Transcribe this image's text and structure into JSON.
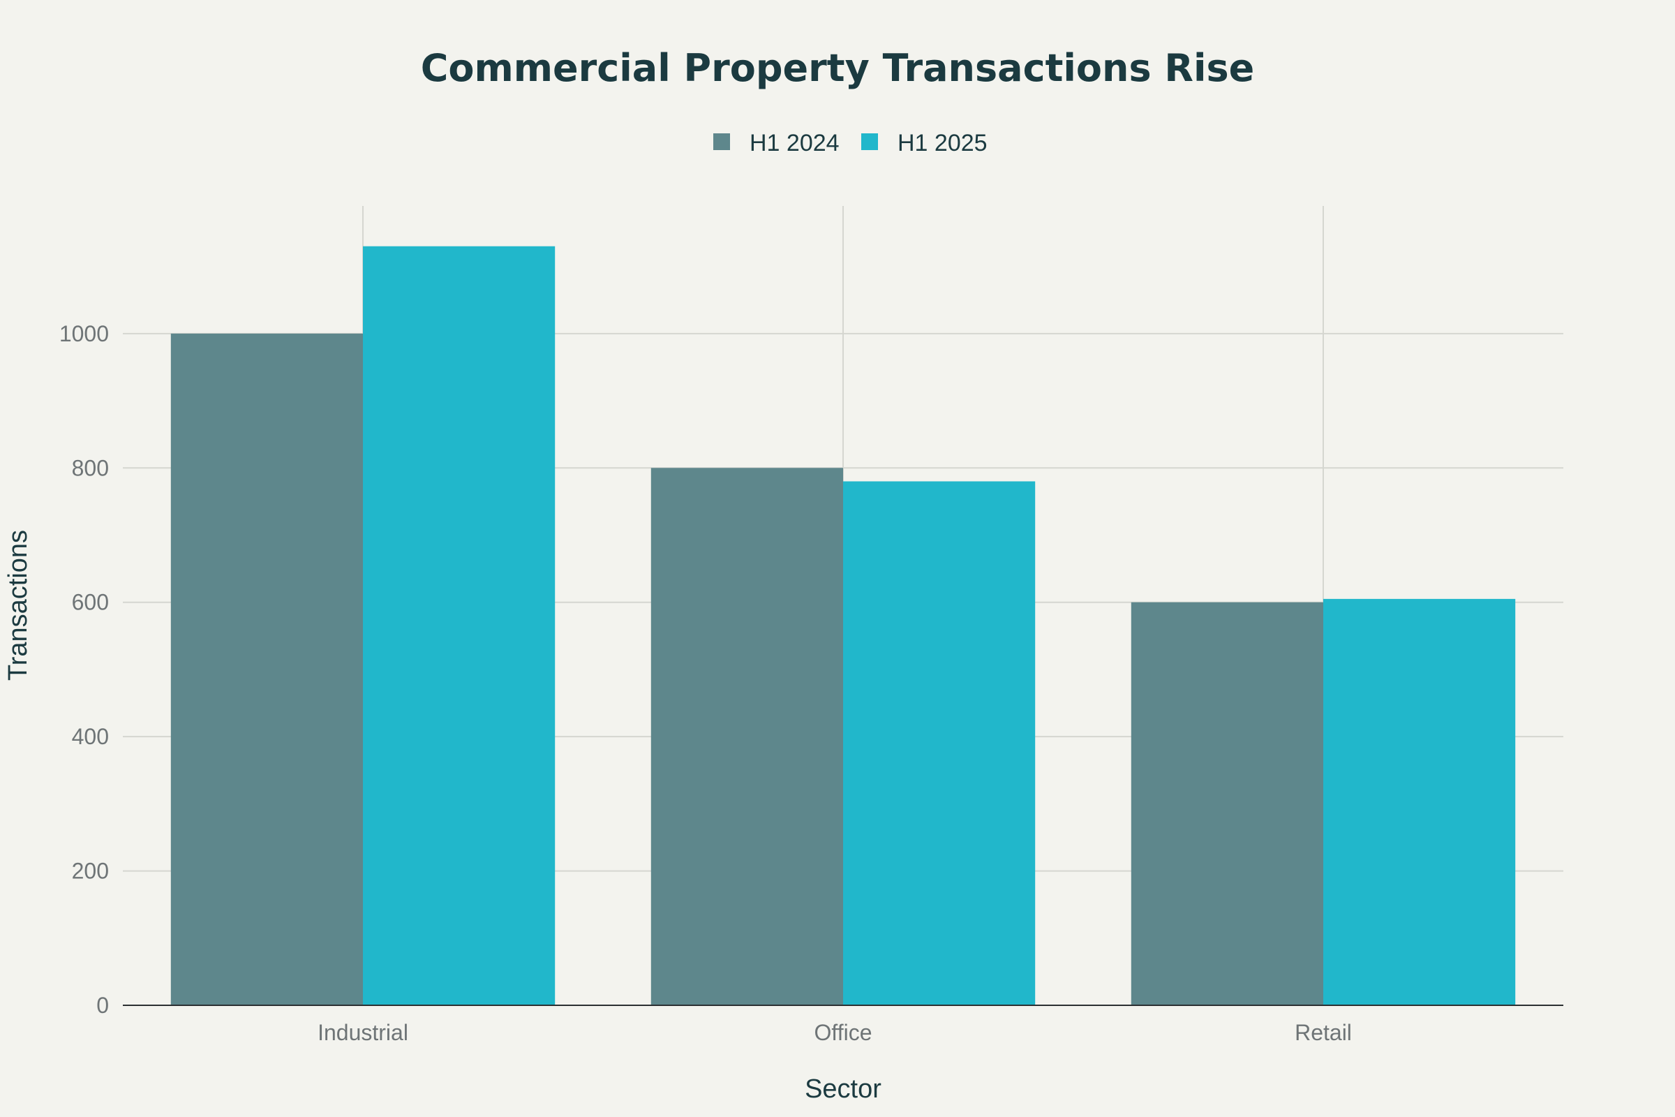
{
  "chart_data": {
    "type": "bar",
    "title": "Commercial Property Transactions Rise",
    "xlabel": "Sector",
    "ylabel": "Transactions",
    "categories": [
      "Industrial",
      "Office",
      "Retail"
    ],
    "series": [
      {
        "name": "H1 2024",
        "color": "#5e878c",
        "values": [
          1000,
          800,
          600
        ]
      },
      {
        "name": "H1 2025",
        "color": "#21b7cb",
        "values": [
          1130,
          780,
          605
        ]
      }
    ],
    "ylim": [
      0,
      1190
    ],
    "yticks": [
      0,
      200,
      400,
      600,
      800,
      1000
    ],
    "grid": true,
    "legend_position": "top-center"
  }
}
